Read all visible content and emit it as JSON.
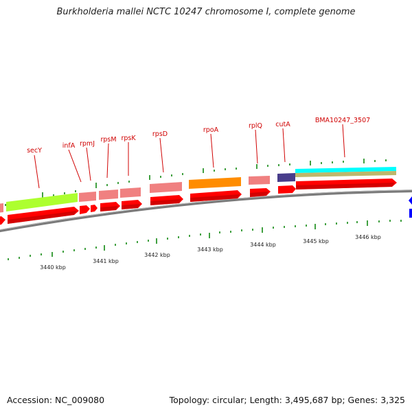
{
  "title": "Burkholderia mallei NCTC 10247 chromosome I, complete genome",
  "footer": {
    "accession": "Accession: NC_009080",
    "summary": "Topology: circular; Length: 3,495,687 bp; Genes: 3,325"
  },
  "ruler_labels": [
    "3440 kbp",
    "3441 kbp",
    "3442 kbp",
    "3443 kbp",
    "3444 kbp",
    "3445 kbp",
    "3446 kbp"
  ],
  "gene_labels": [
    "secY",
    "infA",
    "rpmJ",
    "rpsM",
    "rpsK",
    "rpsD",
    "rpoA",
    "rplQ",
    "cutA",
    "BMA10247_3507"
  ],
  "colors": {
    "cds": "#ff0000",
    "cog_pink": "#f08080",
    "cog_lime": "#adff2f",
    "cog_orange": "#ff8c00",
    "cog_navy": "#483d8b",
    "cog_cyan": "#00ffff",
    "cog_khaki": "#bdb76b",
    "backbone": "#808080",
    "tick": "#008000",
    "label": "#d00000",
    "strand_marker": "#0000ff"
  }
}
